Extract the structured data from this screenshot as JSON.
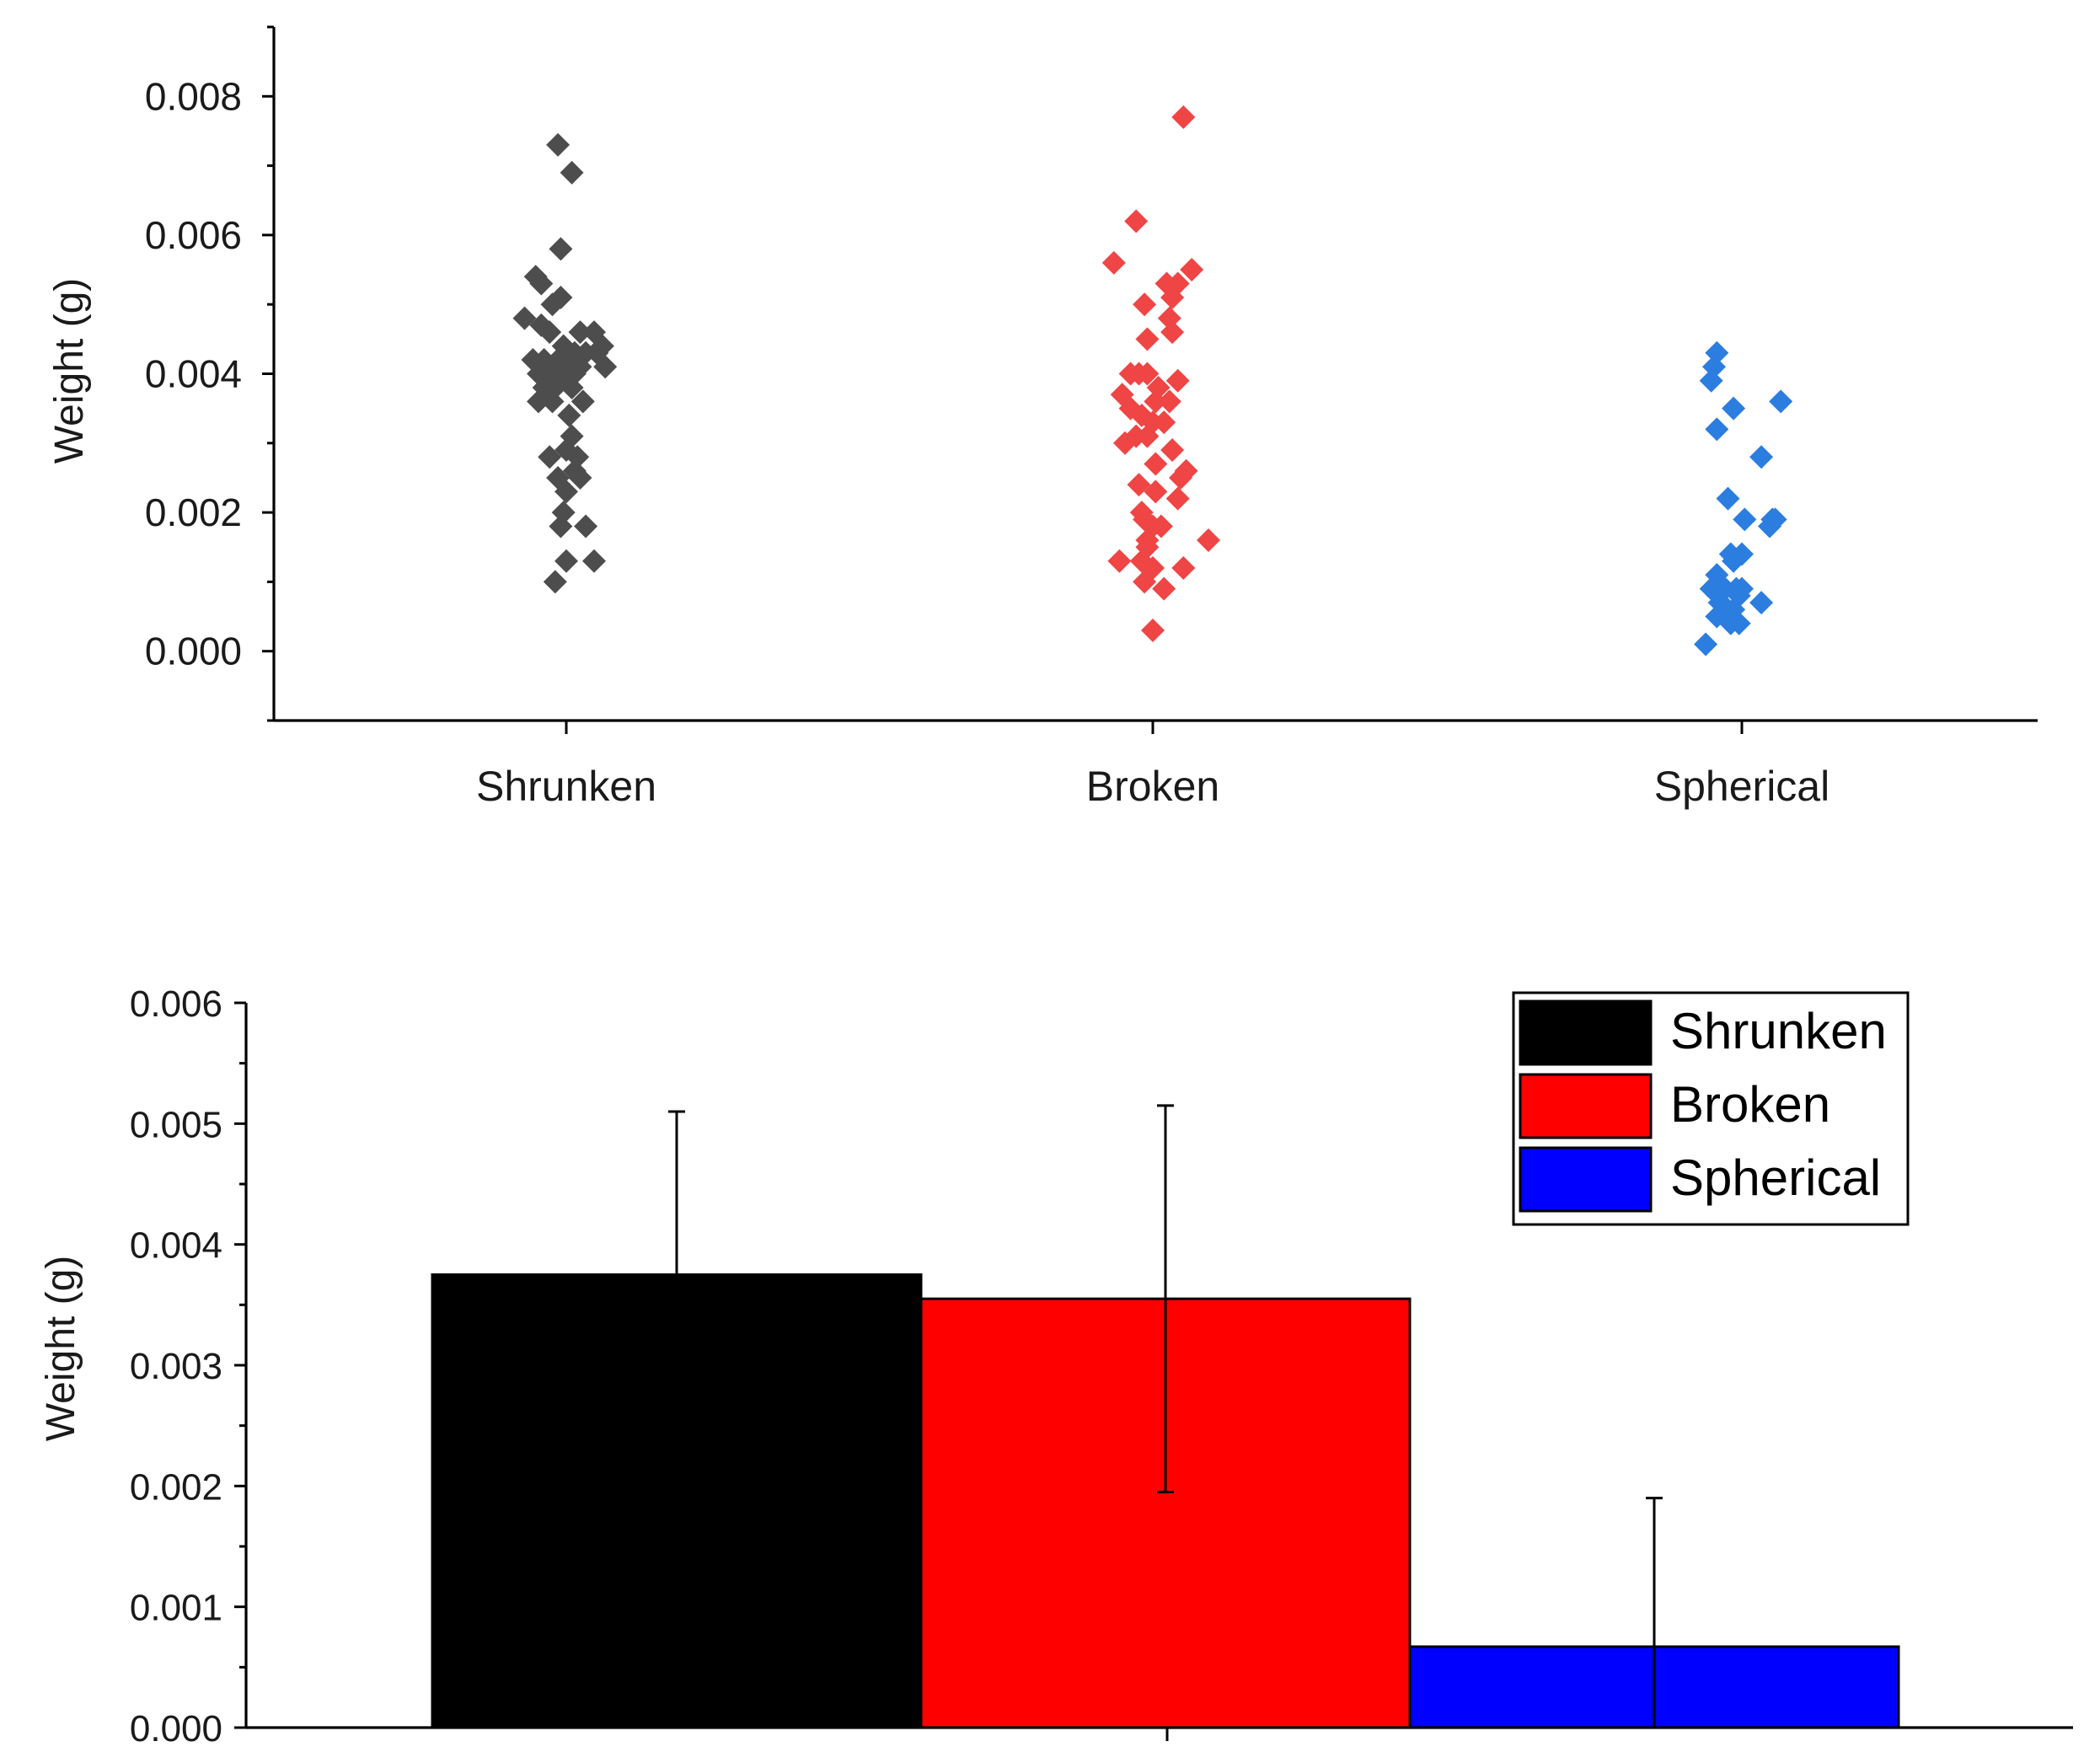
{
  "chart_data": [
    {
      "type": "scatter",
      "title": "",
      "xlabel": "",
      "ylabel": "Weight (g)",
      "ylim": [
        -0.001,
        0.009
      ],
      "yticks": [
        "0.000",
        "0.002",
        "0.004",
        "0.006",
        "0.008"
      ],
      "ytick_values": [
        0,
        0.002,
        0.004,
        0.006,
        0.008
      ],
      "categories": [
        "Shrunken",
        "Broken",
        "Spherical"
      ],
      "grid": false,
      "series": [
        {
          "name": "Shrunken",
          "color": "#4d4d4d",
          "points": [
            [
              -0.03,
              0.0073
            ],
            [
              0.02,
              0.0069
            ],
            [
              -0.02,
              0.0058
            ],
            [
              -0.11,
              0.0054
            ],
            [
              -0.09,
              0.0053
            ],
            [
              -0.15,
              0.0048
            ],
            [
              -0.05,
              0.005
            ],
            [
              -0.02,
              0.0051
            ],
            [
              0.05,
              0.0046
            ],
            [
              0.1,
              0.0046
            ],
            [
              0.13,
              0.0044
            ],
            [
              0.11,
              0.0043
            ],
            [
              -0.09,
              0.0047
            ],
            [
              -0.06,
              0.0046
            ],
            [
              -0.01,
              0.0044
            ],
            [
              0.03,
              0.0043
            ],
            [
              0.07,
              0.0043
            ],
            [
              0.14,
              0.0041
            ],
            [
              -0.12,
              0.0042
            ],
            [
              -0.08,
              0.0042
            ],
            [
              -0.03,
              0.0042
            ],
            [
              0.0,
              0.0041
            ],
            [
              0.05,
              0.0041
            ],
            [
              -0.1,
              0.004
            ],
            [
              -0.06,
              0.004
            ],
            [
              -0.01,
              0.004
            ],
            [
              0.03,
              0.004
            ],
            [
              -0.08,
              0.0038
            ],
            [
              -0.04,
              0.0038
            ],
            [
              0.02,
              0.0038
            ],
            [
              0.06,
              0.0036
            ],
            [
              -0.1,
              0.0036
            ],
            [
              -0.05,
              0.0036
            ],
            [
              0.01,
              0.0034
            ],
            [
              0.02,
              0.0031
            ],
            [
              0.0,
              0.0029
            ],
            [
              0.04,
              0.0028
            ],
            [
              -0.06,
              0.0028
            ],
            [
              0.03,
              0.0026
            ],
            [
              0.05,
              0.0025
            ],
            [
              -0.03,
              0.0025
            ],
            [
              0.0,
              0.0023
            ],
            [
              -0.01,
              0.002
            ],
            [
              -0.02,
              0.0018
            ],
            [
              0.07,
              0.0018
            ],
            [
              -0.0,
              0.0013
            ],
            [
              0.1,
              0.0013
            ],
            [
              -0.04,
              0.001
            ]
          ]
        },
        {
          "name": "Broken",
          "color": "#ef4545",
          "points": [
            [
              0.11,
              0.0077
            ],
            [
              -0.06,
              0.0062
            ],
            [
              -0.14,
              0.0056
            ],
            [
              0.14,
              0.0055
            ],
            [
              0.09,
              0.0053
            ],
            [
              0.05,
              0.0053
            ],
            [
              0.07,
              0.0051
            ],
            [
              -0.03,
              0.005
            ],
            [
              0.06,
              0.0048
            ],
            [
              0.07,
              0.0046
            ],
            [
              -0.02,
              0.0045
            ],
            [
              -0.08,
              0.004
            ],
            [
              -0.05,
              0.004
            ],
            [
              -0.02,
              0.004
            ],
            [
              0.09,
              0.0039
            ],
            [
              0.02,
              0.0038
            ],
            [
              -0.11,
              0.0037
            ],
            [
              0.06,
              0.0036
            ],
            [
              0.01,
              0.0036
            ],
            [
              -0.08,
              0.0035
            ],
            [
              -0.04,
              0.0034
            ],
            [
              0.0,
              0.0033
            ],
            [
              0.04,
              0.0033
            ],
            [
              -0.06,
              0.0031
            ],
            [
              -0.02,
              0.0031
            ],
            [
              -0.1,
              0.003
            ],
            [
              0.07,
              0.0029
            ],
            [
              0.01,
              0.0027
            ],
            [
              0.12,
              0.0026
            ],
            [
              0.1,
              0.0025
            ],
            [
              -0.05,
              0.0024
            ],
            [
              0.01,
              0.0023
            ],
            [
              0.09,
              0.0022
            ],
            [
              -0.04,
              0.002
            ],
            [
              -0.03,
              0.0019
            ],
            [
              0.03,
              0.0018
            ],
            [
              0.0,
              0.0018
            ],
            [
              -0.02,
              0.0016
            ],
            [
              0.2,
              0.0016
            ],
            [
              -0.02,
              0.0015
            ],
            [
              -0.12,
              0.0013
            ],
            [
              -0.04,
              0.0013
            ],
            [
              0.0,
              0.0012
            ],
            [
              0.11,
              0.0012
            ],
            [
              -0.03,
              0.001
            ],
            [
              0.04,
              0.0009
            ],
            [
              0.0,
              0.0003
            ]
          ]
        },
        {
          "name": "Spherical",
          "color": "#2b7de0",
          "points": [
            [
              -0.09,
              0.0043
            ],
            [
              -0.1,
              0.0041
            ],
            [
              -0.11,
              0.0039
            ],
            [
              -0.03,
              0.0035
            ],
            [
              0.14,
              0.0036
            ],
            [
              -0.09,
              0.0032
            ],
            [
              0.07,
              0.0028
            ],
            [
              -0.05,
              0.0022
            ],
            [
              0.01,
              0.0019
            ],
            [
              0.1,
              0.0018
            ],
            [
              0.11,
              0.0019
            ],
            [
              0.12,
              0.0019
            ],
            [
              -0.04,
              0.0014
            ],
            [
              -0.03,
              0.0013
            ],
            [
              0.0,
              0.0014
            ],
            [
              -0.09,
              0.0011
            ],
            [
              -0.11,
              0.0009
            ],
            [
              -0.06,
              0.0009
            ],
            [
              -0.02,
              0.0009
            ],
            [
              -0.01,
              0.0008
            ],
            [
              0.0,
              0.0009
            ],
            [
              -0.08,
              0.0007
            ],
            [
              -0.05,
              0.0006
            ],
            [
              -0.03,
              0.0006
            ],
            [
              0.07,
              0.0007
            ],
            [
              -0.09,
              0.0005
            ],
            [
              -0.04,
              0.0004
            ],
            [
              -0.01,
              0.0004
            ],
            [
              -0.13,
              0.0001
            ]
          ]
        }
      ]
    },
    {
      "type": "bar",
      "title": "",
      "xlabel": "",
      "ylabel": "Weight (g)",
      "ylim": [
        0,
        0.006
      ],
      "yticks": [
        "0.000",
        "0.001",
        "0.002",
        "0.003",
        "0.004",
        "0.005",
        "0.006"
      ],
      "ytick_values": [
        0,
        0.001,
        0.002,
        0.003,
        0.004,
        0.005,
        0.006
      ],
      "categories": [
        "Shrunken",
        "Broken",
        "Spherical"
      ],
      "grid": false,
      "legend_position": "top-right",
      "series": [
        {
          "name": "Shrunken",
          "value": 0.00375,
          "error": 0.00135,
          "color": "#000000"
        },
        {
          "name": "Broken",
          "value": 0.00355,
          "error": 0.0016,
          "color": "#ff0000"
        },
        {
          "name": "Spherical",
          "value": 0.00067,
          "error": 0.00123,
          "color": "#0000ff"
        }
      ]
    }
  ]
}
